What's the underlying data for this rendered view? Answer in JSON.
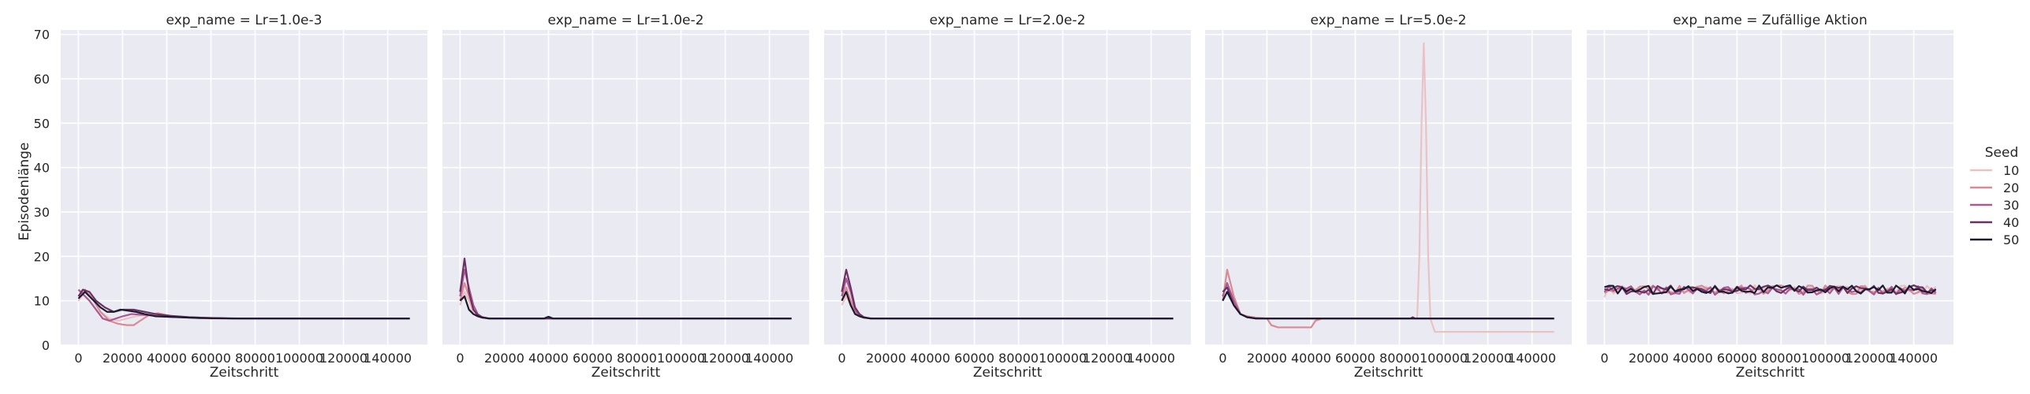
{
  "chart_data": {
    "type": "line",
    "facet_variable": "exp_name",
    "xlabel": "Zeitschritt",
    "ylabel": "Episodenlänge",
    "xlim": [
      -8000,
      158000
    ],
    "ylim": [
      0,
      71
    ],
    "xticks": [
      0,
      20000,
      40000,
      60000,
      80000,
      100000,
      120000,
      140000
    ],
    "yticks": [
      0,
      10,
      20,
      30,
      40,
      50,
      60,
      70
    ],
    "grid": true,
    "legend": {
      "title": "Seed",
      "placement": "right",
      "entries": [
        {
          "label": "10",
          "color": "#ebc2c4"
        },
        {
          "label": "20",
          "color": "#d98a94"
        },
        {
          "label": "30",
          "color": "#a95a91"
        },
        {
          "label": "40",
          "color": "#6b3162"
        },
        {
          "label": "50",
          "color": "#1b1a2e"
        }
      ]
    },
    "panels": [
      {
        "title": "exp_name = Lr=1.0e-3",
        "series": [
          {
            "name": "10",
            "x": [
              0,
              3000,
              7000,
              10000,
              14000,
              18000,
              22000,
              26000,
              30000,
              35000,
              40000,
              50000,
              60000,
              80000,
              100000,
              150000
            ],
            "y": [
              10,
              12,
              10,
              7.5,
              6,
              5.5,
              6,
              6.5,
              6.8,
              6.8,
              6.5,
              6.2,
              6,
              6,
              6,
              6
            ]
          },
          {
            "name": "20",
            "x": [
              0,
              3000,
              7000,
              10000,
              14000,
              18000,
              22000,
              25000,
              28000,
              32000,
              36000,
              42000,
              50000,
              60000,
              80000,
              150000
            ],
            "y": [
              11,
              12.5,
              10,
              7.5,
              5.5,
              4.8,
              4.5,
              4.5,
              5.5,
              6.8,
              7.2,
              6.5,
              6.2,
              6,
              6,
              6
            ]
          },
          {
            "name": "30",
            "x": [
              0,
              2000,
              5000,
              8000,
              11000,
              14000,
              17000,
              20000,
              24000,
              30000,
              40000,
              55000,
              70000,
              90000,
              150000
            ],
            "y": [
              12.5,
              11.5,
              10,
              8,
              6,
              5.5,
              6,
              6.5,
              7,
              6.8,
              6.4,
              6.2,
              6,
              6,
              6
            ]
          },
          {
            "name": "40",
            "x": [
              0,
              2000,
              5000,
              8000,
              12000,
              16000,
              20000,
              25000,
              30000,
              35000,
              42000,
              50000,
              60000,
              75000,
              90000,
              150000
            ],
            "y": [
              11,
              12.5,
              12,
              10,
              8.5,
              7.5,
              8,
              8,
              7.5,
              7,
              6.6,
              6.3,
              6.1,
              6,
              6,
              6
            ]
          },
          {
            "name": "50",
            "x": [
              0,
              3000,
              7000,
              10000,
              13000,
              16000,
              19000,
              22000,
              26000,
              30000,
              35000,
              45000,
              55000,
              70000,
              90000,
              150000
            ],
            "y": [
              10.5,
              12,
              10,
              8.5,
              7.5,
              7.5,
              8,
              7.8,
              7.5,
              7,
              6.5,
              6.3,
              6.1,
              6,
              6,
              6
            ]
          }
        ]
      },
      {
        "title": "exp_name = Lr=1.0e-2",
        "series": [
          {
            "name": "10",
            "x": [
              0,
              2000,
              4000,
              6000,
              8000,
              11000,
              15000,
              20000,
              150000
            ],
            "y": [
              9,
              12,
              10,
              7,
              6.5,
              6.2,
              6,
              6,
              6
            ]
          },
          {
            "name": "20",
            "x": [
              0,
              2000,
              4000,
              6000,
              8000,
              10000,
              14000,
              20000,
              150000
            ],
            "y": [
              10,
              14,
              11,
              8,
              6.5,
              6.2,
              6,
              6,
              6
            ]
          },
          {
            "name": "30",
            "x": [
              0,
              2000,
              4000,
              6000,
              8000,
              10000,
              13000,
              20000,
              150000
            ],
            "y": [
              11,
              17,
              13,
              9,
              7,
              6.3,
              6,
              6,
              6
            ]
          },
          {
            "name": "40",
            "x": [
              0,
              2000,
              4000,
              6000,
              8000,
              10000,
              13000,
              20000,
              150000
            ],
            "y": [
              12,
              19.5,
              12,
              8,
              6.8,
              6.3,
              6,
              6,
              6
            ]
          },
          {
            "name": "50",
            "x": [
              0,
              2000,
              4000,
              6000,
              8000,
              10000,
              13000,
              20000,
              38000,
              40000,
              42000,
              150000
            ],
            "y": [
              10,
              11,
              8,
              7,
              6.5,
              6.2,
              6,
              6,
              6,
              6.4,
              6,
              6
            ]
          }
        ]
      },
      {
        "title": "exp_name = Lr=2.0e-2",
        "series": [
          {
            "name": "10",
            "x": [
              0,
              2000,
              4000,
              6000,
              8000,
              11000,
              15000,
              20000,
              150000
            ],
            "y": [
              9,
              11,
              9,
              7,
              6.5,
              6.2,
              6,
              6,
              6
            ]
          },
          {
            "name": "20",
            "x": [
              0,
              2000,
              4000,
              6000,
              8000,
              10000,
              14000,
              20000,
              150000
            ],
            "y": [
              10,
              13,
              10,
              7.5,
              6.5,
              6.2,
              6,
              6,
              6
            ]
          },
          {
            "name": "30",
            "x": [
              0,
              2000,
              4000,
              6000,
              8000,
              10000,
              13000,
              20000,
              150000
            ],
            "y": [
              11,
              15,
              12,
              8,
              6.5,
              6.2,
              6,
              6,
              6
            ]
          },
          {
            "name": "40",
            "x": [
              0,
              2000,
              4000,
              6000,
              8000,
              10000,
              13000,
              20000,
              150000
            ],
            "y": [
              12,
              17,
              13,
              8.5,
              7,
              6.3,
              6,
              6,
              6
            ]
          },
          {
            "name": "50",
            "x": [
              0,
              2000,
              4000,
              6000,
              8000,
              10000,
              13000,
              20000,
              150000
            ],
            "y": [
              10,
              12,
              9,
              7,
              6.5,
              6.2,
              6,
              6,
              6
            ]
          }
        ]
      },
      {
        "title": "exp_name = Lr=5.0e-2",
        "series": [
          {
            "name": "10",
            "x": [
              0,
              2000,
              5000,
              8000,
              11000,
              15000,
              20000,
              88000,
              89000,
              90000,
              91000,
              92000,
              93000,
              94000,
              96000,
              100000,
              150000
            ],
            "y": [
              10,
              12,
              9,
              7,
              6.5,
              6.2,
              6,
              6,
              20,
              50,
              68,
              50,
              20,
              6,
              3,
              3,
              3
            ]
          },
          {
            "name": "20",
            "x": [
              0,
              2000,
              5000,
              8000,
              11000,
              15000,
              20000,
              22000,
              25000,
              30000,
              40000,
              42000,
              45000,
              150000
            ],
            "y": [
              10,
              17,
              11,
              7,
              6.5,
              6.2,
              6,
              4.5,
              4,
              4,
              4,
              5.5,
              6,
              6
            ]
          },
          {
            "name": "30",
            "x": [
              0,
              2000,
              5000,
              8000,
              11000,
              15000,
              20000,
              150000
            ],
            "y": [
              11,
              14,
              10,
              7,
              6.3,
              6,
              6,
              6
            ]
          },
          {
            "name": "40",
            "x": [
              0,
              2000,
              5000,
              8000,
              11000,
              15000,
              20000,
              85000,
              86000,
              87000,
              150000
            ],
            "y": [
              12,
              13,
              9,
              7,
              6.3,
              6,
              6,
              6,
              6.3,
              6,
              6
            ]
          },
          {
            "name": "50",
            "x": [
              0,
              2000,
              5000,
              8000,
              11000,
              15000,
              20000,
              150000
            ],
            "y": [
              10,
              12,
              9,
              7,
              6.3,
              6,
              6,
              6
            ]
          }
        ]
      },
      {
        "title": "exp_name = Zufällige Aktion",
        "noise": {
          "mean": 12.3,
          "amplitude": 1.0,
          "step": 2000
        },
        "series": [
          {
            "name": "10",
            "x": [
              0,
              1000,
              2000,
              150000
            ],
            "y": [
              10,
              11,
              12.5,
              12.5
            ]
          },
          {
            "name": "20",
            "x": [
              0,
              150000
            ],
            "y": [
              12.5,
              12.5
            ]
          },
          {
            "name": "30",
            "x": [
              0,
              150000
            ],
            "y": [
              12.3,
              12.3
            ]
          },
          {
            "name": "40",
            "x": [
              0,
              150000
            ],
            "y": [
              12.5,
              12.5
            ]
          },
          {
            "name": "50",
            "x": [
              0,
              150000
            ],
            "y": [
              12.5,
              12.5
            ]
          }
        ]
      }
    ]
  }
}
